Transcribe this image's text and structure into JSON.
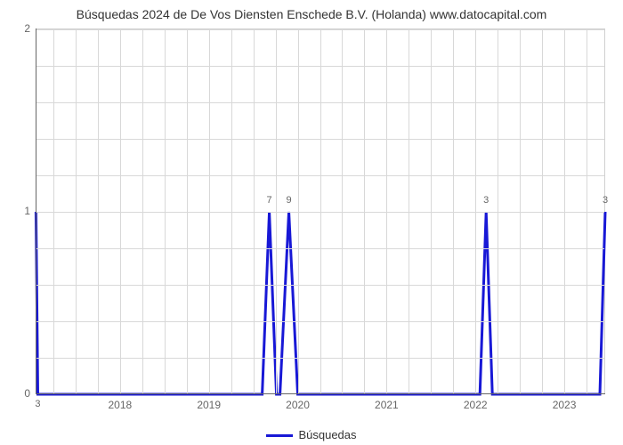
{
  "chart": {
    "type": "line",
    "title": "Búsquedas 2024 de De Vos Diensten Enschede B.V. (Holanda) www.datocapital.com",
    "title_fontsize": 14,
    "title_color": "#333333",
    "background_color": "#ffffff",
    "grid_color": "#d8d8d8",
    "axis_color": "#666666",
    "line_color": "#1818d6",
    "line_width": 3,
    "x_range": [
      2017.05,
      2023.46
    ],
    "y_range": [
      0,
      2
    ],
    "y_ticks": [
      0,
      1,
      2
    ],
    "y_minor_count": 4,
    "x_ticks": [
      2018,
      2019,
      2020,
      2021,
      2022,
      2023
    ],
    "x_minor_step": 0.25,
    "legend_label": "Búsquedas",
    "label_fontsize": 12,
    "series": [
      {
        "x": 2017.054,
        "y": 1,
        "label": null
      },
      {
        "x": 2017.075,
        "y": 0,
        "label": "3"
      },
      {
        "x": 2019.6,
        "y": 0,
        "label": null
      },
      {
        "x": 2019.68,
        "y": 1,
        "label": "7"
      },
      {
        "x": 2019.76,
        "y": 0,
        "label": null
      },
      {
        "x": 2019.8,
        "y": 0,
        "label": null
      },
      {
        "x": 2019.9,
        "y": 1,
        "label": "9"
      },
      {
        "x": 2020.0,
        "y": 0,
        "label": null
      },
      {
        "x": 2022.05,
        "y": 0,
        "label": null
      },
      {
        "x": 2022.12,
        "y": 1,
        "label": "3"
      },
      {
        "x": 2022.19,
        "y": 0,
        "label": null
      },
      {
        "x": 2023.4,
        "y": 0,
        "label": null
      },
      {
        "x": 2023.46,
        "y": 1,
        "label": "3"
      }
    ]
  }
}
